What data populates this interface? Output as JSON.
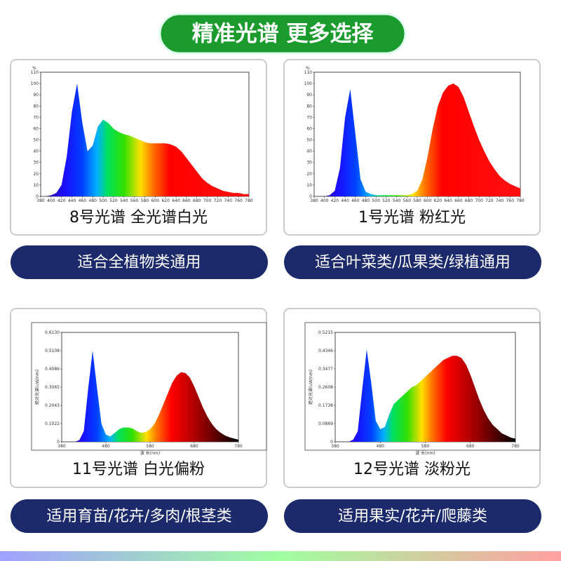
{
  "title": "精准光谱 更多选择",
  "panels": [
    {
      "caption": "8号光谱 全光谱白光",
      "usage": "适合全植物类通用"
    },
    {
      "caption": "1号光谱 粉红光",
      "usage": "适合叶菜类/瓜果类/绿植通用"
    },
    {
      "caption": "11号光谱 白光偏粉",
      "usage": "适用育苗/花卉/多肉/根茎类"
    },
    {
      "caption": "12号光谱 淡粉光",
      "usage": "适用果实/花卉/爬藤类"
    }
  ],
  "chart_data": [
    {
      "type": "area",
      "ylabel": "%",
      "xlim": [
        380,
        780
      ],
      "ylim": [
        0,
        110
      ],
      "xticks": [
        380,
        400,
        420,
        440,
        460,
        480,
        500,
        520,
        540,
        560,
        580,
        600,
        620,
        640,
        660,
        680,
        700,
        720,
        740,
        760,
        780
      ],
      "yticks": [
        0,
        10,
        20,
        30,
        40,
        50,
        60,
        70,
        80,
        90,
        100,
        110
      ],
      "x": [
        380,
        390,
        400,
        410,
        420,
        430,
        440,
        450,
        460,
        470,
        480,
        490,
        500,
        510,
        520,
        530,
        540,
        550,
        560,
        570,
        580,
        590,
        600,
        610,
        620,
        630,
        640,
        650,
        660,
        670,
        680,
        690,
        700,
        710,
        720,
        730,
        740,
        750,
        760,
        770,
        780
      ],
      "values": [
        0,
        0,
        1,
        3,
        10,
        35,
        75,
        100,
        65,
        40,
        45,
        62,
        68,
        65,
        60,
        57,
        55,
        54,
        52,
        50,
        48,
        47,
        47,
        47,
        47,
        46,
        44,
        40,
        34,
        28,
        22,
        16,
        12,
        9,
        7,
        5,
        4,
        3,
        3,
        2,
        2
      ]
    },
    {
      "type": "area",
      "ylabel": "%",
      "xlim": [
        380,
        780
      ],
      "ylim": [
        0,
        110
      ],
      "xticks": [
        380,
        400,
        420,
        440,
        460,
        480,
        500,
        520,
        540,
        560,
        580,
        600,
        620,
        640,
        660,
        680,
        700,
        720,
        740,
        760,
        780
      ],
      "yticks": [
        0,
        10,
        20,
        30,
        40,
        50,
        60,
        70,
        80,
        90,
        100,
        110
      ],
      "x": [
        380,
        390,
        400,
        410,
        420,
        430,
        440,
        450,
        460,
        470,
        480,
        490,
        500,
        510,
        520,
        530,
        540,
        550,
        560,
        570,
        580,
        590,
        600,
        610,
        620,
        630,
        640,
        650,
        660,
        670,
        680,
        690,
        700,
        710,
        720,
        730,
        740,
        750,
        760,
        770,
        780
      ],
      "values": [
        0,
        0,
        0,
        1,
        5,
        25,
        70,
        95,
        55,
        15,
        4,
        2,
        1,
        1,
        1,
        1,
        1,
        1,
        1,
        2,
        5,
        15,
        35,
        60,
        80,
        92,
        98,
        100,
        97,
        88,
        75,
        62,
        50,
        40,
        31,
        24,
        18,
        14,
        11,
        9,
        7
      ]
    },
    {
      "type": "area",
      "ylabel": "绝对光谱(uW/nm)",
      "xlabel": "波 长(nm)",
      "xlim": [
        380,
        780
      ],
      "ylim": [
        0,
        0.613
      ],
      "xticks": [
        380,
        480,
        580,
        680,
        780
      ],
      "yticks": [
        0,
        0.1022,
        0.2043,
        0.3065,
        0.4086,
        0.5108,
        {
          "value": 0.613,
          "label": "0.6130"
        }
      ],
      "x": [
        380,
        390,
        400,
        410,
        420,
        430,
        440,
        450,
        460,
        470,
        480,
        490,
        500,
        510,
        520,
        530,
        540,
        550,
        560,
        570,
        580,
        590,
        600,
        610,
        620,
        630,
        640,
        650,
        660,
        670,
        680,
        690,
        700,
        710,
        720,
        730,
        740,
        750,
        760,
        770,
        780
      ],
      "values": [
        0,
        0,
        0,
        0,
        0.01,
        0.06,
        0.3,
        0.51,
        0.3,
        0.1,
        0.04,
        0.03,
        0.05,
        0.07,
        0.08,
        0.08,
        0.075,
        0.06,
        0.05,
        0.055,
        0.07,
        0.1,
        0.15,
        0.21,
        0.27,
        0.33,
        0.37,
        0.39,
        0.385,
        0.36,
        0.31,
        0.25,
        0.19,
        0.14,
        0.1,
        0.07,
        0.05,
        0.035,
        0.025,
        0.018,
        0.012
      ]
    },
    {
      "type": "area",
      "ylabel": "绝对光谱(uW/nm)",
      "xlabel": "波 长(nm)",
      "xlim": [
        380,
        780
      ],
      "ylim": [
        0,
        0.5215
      ],
      "xticks": [
        380,
        480,
        580,
        680,
        780
      ],
      "yticks": [
        0,
        0.0869,
        0.1738,
        0.2608,
        0.3477,
        0.4346,
        0.5215
      ],
      "x": [
        380,
        390,
        400,
        410,
        420,
        430,
        440,
        450,
        460,
        470,
        480,
        490,
        500,
        510,
        520,
        530,
        540,
        550,
        560,
        570,
        580,
        590,
        600,
        610,
        620,
        630,
        640,
        650,
        660,
        670,
        680,
        690,
        700,
        710,
        720,
        730,
        740,
        750,
        760,
        770,
        780
      ],
      "values": [
        0,
        0,
        0,
        0,
        0.01,
        0.05,
        0.25,
        0.44,
        0.28,
        0.1,
        0.06,
        0.07,
        0.13,
        0.18,
        0.2,
        0.22,
        0.24,
        0.26,
        0.27,
        0.29,
        0.31,
        0.33,
        0.35,
        0.37,
        0.39,
        0.4,
        0.41,
        0.41,
        0.4,
        0.37,
        0.32,
        0.26,
        0.2,
        0.15,
        0.11,
        0.08,
        0.06,
        0.04,
        0.03,
        0.02,
        0.015
      ]
    }
  ]
}
